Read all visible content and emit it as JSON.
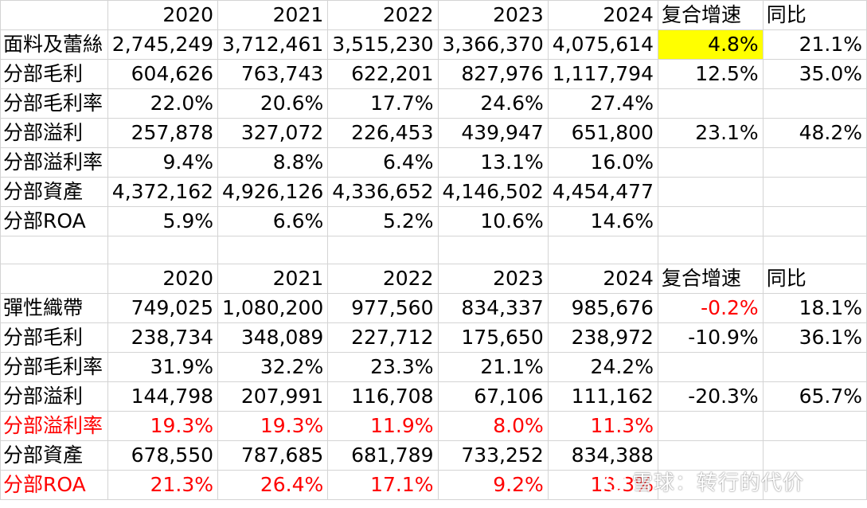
{
  "table1": {
    "header": [
      "2020",
      "2021",
      "2022",
      "2023",
      "2024",
      "复合增速",
      "同比"
    ],
    "rows": [
      {
        "label": "面料及蕾絲",
        "values": [
          "2,745,249",
          "3,712,461",
          "3,515,230",
          "3,366,370",
          "4,075,614",
          "4.8%",
          "21.1%"
        ]
      },
      {
        "label": "分部毛利",
        "values": [
          "604,626",
          "763,743",
          "622,201",
          "827,976",
          "1,117,794",
          "12.5%",
          "35.0%"
        ]
      },
      {
        "label": "分部毛利率",
        "values": [
          "22.0%",
          "20.6%",
          "17.7%",
          "24.6%",
          "27.4%",
          "",
          ""
        ]
      },
      {
        "label": "分部溢利",
        "values": [
          "257,878",
          "327,072",
          "226,453",
          "439,947",
          "651,800",
          "23.1%",
          "48.2%"
        ]
      },
      {
        "label": "分部溢利率",
        "values": [
          "9.4%",
          "8.8%",
          "6.4%",
          "13.1%",
          "16.0%",
          "",
          ""
        ]
      },
      {
        "label": "分部資產",
        "values": [
          "4,372,162",
          "4,926,126",
          "4,336,652",
          "4,146,502",
          "4,454,477",
          "",
          ""
        ]
      },
      {
        "label": "分部ROA",
        "values": [
          "5.9%",
          "6.6%",
          "5.2%",
          "10.6%",
          "14.6%",
          "",
          ""
        ]
      }
    ]
  },
  "table2": {
    "header": [
      "2020",
      "2021",
      "2022",
      "2023",
      "2024",
      "复合增速",
      "同比"
    ],
    "rows": [
      {
        "label": "彈性織帶",
        "values": [
          "749,025",
          "1,080,200",
          "977,560",
          "834,337",
          "985,676",
          "-0.2%",
          "18.1%"
        ]
      },
      {
        "label": "分部毛利",
        "values": [
          "238,734",
          "348,089",
          "227,712",
          "175,650",
          "238,972",
          "-10.9%",
          "36.1%"
        ]
      },
      {
        "label": "分部毛利率",
        "values": [
          "31.9%",
          "32.2%",
          "23.3%",
          "21.1%",
          "24.2%",
          "",
          ""
        ]
      },
      {
        "label": "分部溢利",
        "values": [
          "144,798",
          "207,991",
          "116,708",
          "67,106",
          "111,162",
          "-20.3%",
          "65.7%"
        ]
      },
      {
        "label": "分部溢利率",
        "values": [
          "19.3%",
          "19.3%",
          "11.9%",
          "8.0%",
          "11.3%",
          "",
          ""
        ]
      },
      {
        "label": "分部資產",
        "values": [
          "678,550",
          "787,685",
          "681,789",
          "733,252",
          "834,388",
          "",
          ""
        ]
      },
      {
        "label": "分部ROA",
        "values": [
          "21.3%",
          "26.4%",
          "17.1%",
          "9.2%",
          "13.3%",
          "",
          ""
        ]
      }
    ]
  },
  "watermark": "雪球：转行的代价",
  "colors": {
    "highlight": "#ffff00",
    "negative": "#ff0000",
    "grid": "#d4d4d4"
  }
}
